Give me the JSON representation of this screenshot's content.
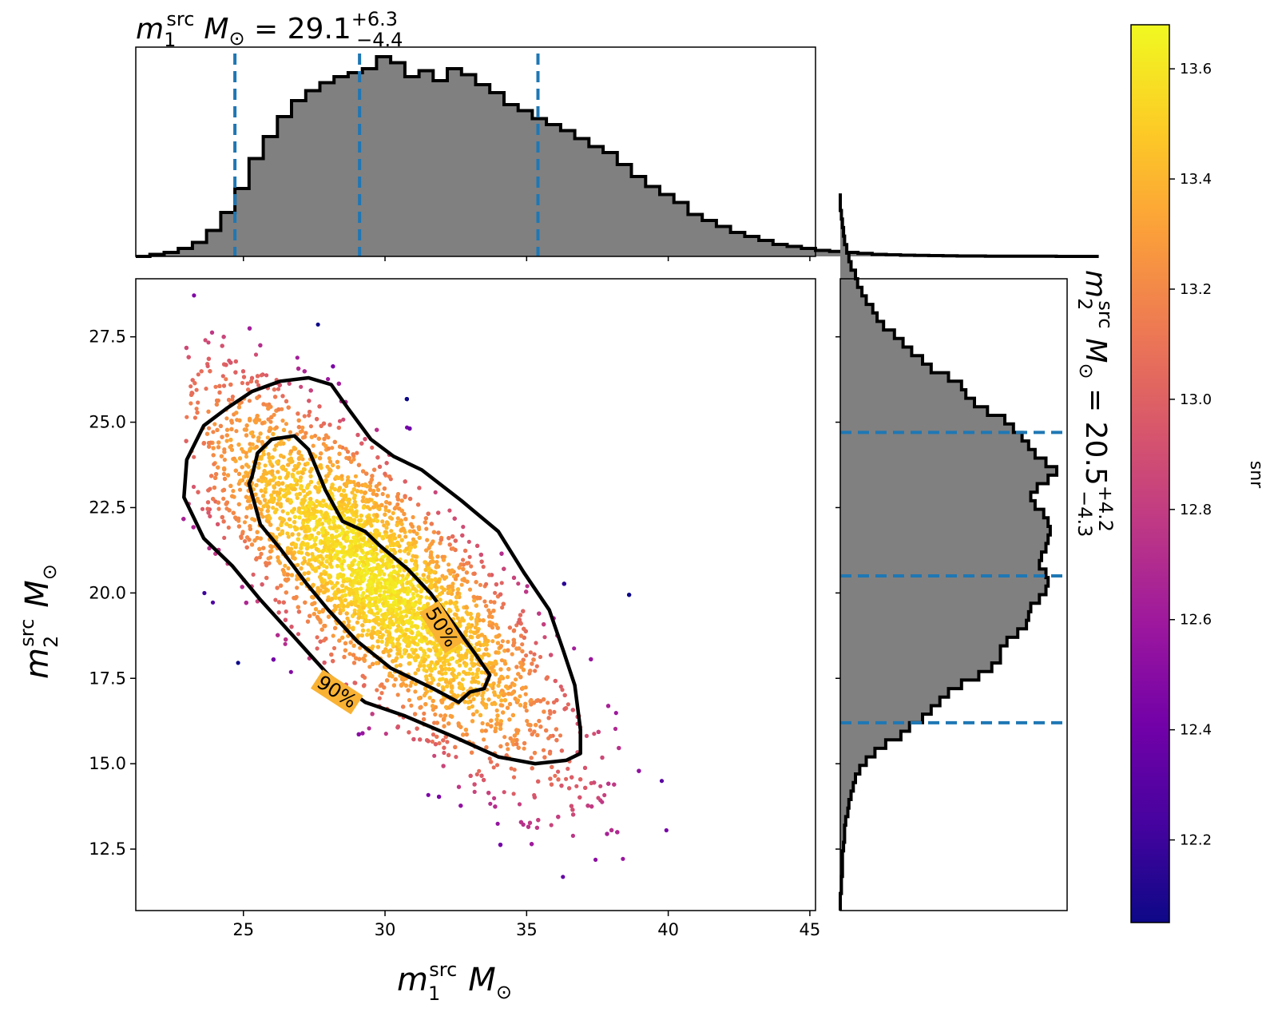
{
  "chart_data": [
    {
      "type": "histogram",
      "panel": "top-marginal",
      "title": {
        "var": "m",
        "sub": "1",
        "sup": "src",
        "unit": "M",
        "unitSub": "⊙",
        "median": "29.1",
        "plus": "+6.3",
        "minus": "−4.4"
      },
      "xlim": [
        21.2,
        45.2
      ],
      "quantile_lines": [
        24.7,
        29.1,
        35.4
      ],
      "bins_x_start": 21.2,
      "bin_width": 0.5,
      "heights": [
        0,
        0.01,
        0.02,
        0.04,
        0.07,
        0.13,
        0.22,
        0.34,
        0.49,
        0.6,
        0.7,
        0.78,
        0.83,
        0.87,
        0.9,
        0.92,
        0.94,
        1.0,
        0.97,
        0.9,
        0.93,
        0.88,
        0.94,
        0.91,
        0.86,
        0.82,
        0.76,
        0.73,
        0.69,
        0.66,
        0.63,
        0.59,
        0.55,
        0.52,
        0.46,
        0.4,
        0.35,
        0.31,
        0.27,
        0.21,
        0.18,
        0.15,
        0.12,
        0.1,
        0.08,
        0.06,
        0.05,
        0.04,
        0.03,
        0.025,
        0.02,
        0.015,
        0.01,
        0.008,
        0.006,
        0.005,
        0.004,
        0.003,
        0.002,
        0.002,
        0.001,
        0.001,
        0.001,
        0.001,
        0.001,
        0.0,
        0.0,
        0.0
      ],
      "x_ticks": [
        25,
        30,
        35,
        40,
        45
      ]
    },
    {
      "type": "scatter",
      "panel": "main",
      "xlabel": {
        "var": "m",
        "sub": "1",
        "sup": "src",
        "unit": "M",
        "unitSub": "⊙"
      },
      "ylabel": {
        "var": "m",
        "sub": "2",
        "sup": "src",
        "unit": "M",
        "unitSub": "⊙"
      },
      "xlim": [
        21.2,
        45.2
      ],
      "ylim": [
        10.7,
        29.2
      ],
      "x_ticks": [
        25,
        30,
        35,
        40,
        45
      ],
      "x_tick_labels": [
        "25",
        "30",
        "35",
        "40",
        "45"
      ],
      "y_ticks": [
        12.5,
        15.0,
        17.5,
        20.0,
        22.5,
        25.0,
        27.5
      ],
      "y_tick_labels": [
        "12.5",
        "15.0",
        "17.5",
        "20.0",
        "22.5",
        "25.0",
        "27.5"
      ],
      "color_var": "snr",
      "contours": [
        {
          "label": "50%",
          "points": [
            [
              25.3,
              23.4
            ],
            [
              25.2,
              23.2
            ],
            [
              25.6,
              22.0
            ],
            [
              26.3,
              21.3
            ],
            [
              27.2,
              20.3
            ],
            [
              28.0,
              19.5
            ],
            [
              29.0,
              18.6
            ],
            [
              30.2,
              17.8
            ],
            [
              31.7,
              17.2
            ],
            [
              32.6,
              16.8
            ],
            [
              33.0,
              17.1
            ],
            [
              33.5,
              17.2
            ],
            [
              33.7,
              17.6
            ],
            [
              33.2,
              18.2
            ],
            [
              32.5,
              19.0
            ],
            [
              31.6,
              20.0
            ],
            [
              30.8,
              20.7
            ],
            [
              29.8,
              21.4
            ],
            [
              29.3,
              21.8
            ],
            [
              28.5,
              22.1
            ],
            [
              27.9,
              23.0
            ],
            [
              27.3,
              24.2
            ],
            [
              26.8,
              24.6
            ],
            [
              26.0,
              24.5
            ],
            [
              25.5,
              24.1
            ],
            [
              25.3,
              23.4
            ]
          ],
          "label_at": [
            32.0,
            19.0
          ],
          "label_angle": 58
        },
        {
          "label": "90%",
          "points": [
            [
              22.9,
              22.8
            ],
            [
              23.0,
              23.9
            ],
            [
              23.6,
              24.9
            ],
            [
              24.4,
              25.4
            ],
            [
              25.3,
              25.9
            ],
            [
              26.3,
              26.2
            ],
            [
              27.3,
              26.3
            ],
            [
              28.1,
              26.1
            ],
            [
              28.7,
              25.4
            ],
            [
              29.5,
              24.5
            ],
            [
              30.3,
              24.0
            ],
            [
              31.3,
              23.6
            ],
            [
              32.7,
              22.7
            ],
            [
              34.0,
              21.8
            ],
            [
              34.9,
              20.6
            ],
            [
              35.8,
              19.5
            ],
            [
              36.3,
              18.3
            ],
            [
              36.7,
              17.3
            ],
            [
              36.9,
              16.0
            ],
            [
              36.9,
              15.3
            ],
            [
              36.4,
              15.1
            ],
            [
              35.3,
              15.0
            ],
            [
              34.0,
              15.2
            ],
            [
              32.4,
              15.8
            ],
            [
              30.7,
              16.4
            ],
            [
              29.3,
              16.8
            ],
            [
              28.0,
              17.6
            ],
            [
              26.8,
              18.7
            ],
            [
              25.6,
              19.8
            ],
            [
              24.6,
              20.8
            ],
            [
              23.6,
              21.6
            ],
            [
              22.9,
              22.8
            ]
          ],
          "label_at": [
            28.3,
            17.1
          ],
          "label_angle": 33
        }
      ]
    },
    {
      "type": "histogram",
      "panel": "right-marginal",
      "orientation": "horizontal",
      "title": {
        "var": "m",
        "sub": "2",
        "sup": "src",
        "unit": "M",
        "unitSub": "⊙",
        "median": "20.5",
        "plus": "+4.2",
        "minus": "−4.3"
      },
      "ylim": [
        10.7,
        29.2
      ],
      "quantile_lines": [
        16.2,
        20.5,
        24.7
      ],
      "bins_y_start": 10.7,
      "bin_width": 0.25,
      "widths": [
        0,
        0.0,
        0.005,
        0.005,
        0.01,
        0.01,
        0.01,
        0.015,
        0.02,
        0.02,
        0.025,
        0.035,
        0.04,
        0.05,
        0.06,
        0.07,
        0.09,
        0.12,
        0.16,
        0.21,
        0.28,
        0.32,
        0.38,
        0.42,
        0.46,
        0.5,
        0.56,
        0.64,
        0.7,
        0.74,
        0.74,
        0.77,
        0.82,
        0.86,
        0.87,
        0.88,
        0.92,
        0.95,
        0.96,
        0.95,
        0.92,
        0.93,
        0.95,
        0.96,
        0.97,
        0.96,
        0.94,
        0.9,
        0.88,
        0.91,
        0.96,
        1.0,
        0.95,
        0.9,
        0.87,
        0.84,
        0.8,
        0.76,
        0.68,
        0.62,
        0.58,
        0.56,
        0.5,
        0.42,
        0.38,
        0.33,
        0.29,
        0.25,
        0.2,
        0.17,
        0.15,
        0.12,
        0.1,
        0.08,
        0.07,
        0.05,
        0.04,
        0.03,
        0.02,
        0.015,
        0.01,
        0.005,
        0.0,
        0.0
      ]
    },
    {
      "type": "colorbar",
      "label": "snr",
      "range": [
        12.05,
        13.68
      ],
      "ticks": [
        12.2,
        12.4,
        12.6,
        12.8,
        13.0,
        13.2,
        13.4,
        13.6
      ],
      "tick_labels": [
        "12.2",
        "12.4",
        "12.6",
        "12.8",
        "13.0",
        "13.2",
        "13.4",
        "13.6"
      ],
      "colormap": [
        "#0d0887",
        "#46039f",
        "#7201a8",
        "#9c179e",
        "#bd3786",
        "#d8576b",
        "#ed7953",
        "#fb9f3a",
        "#fdca26",
        "#f0f921"
      ]
    }
  ]
}
